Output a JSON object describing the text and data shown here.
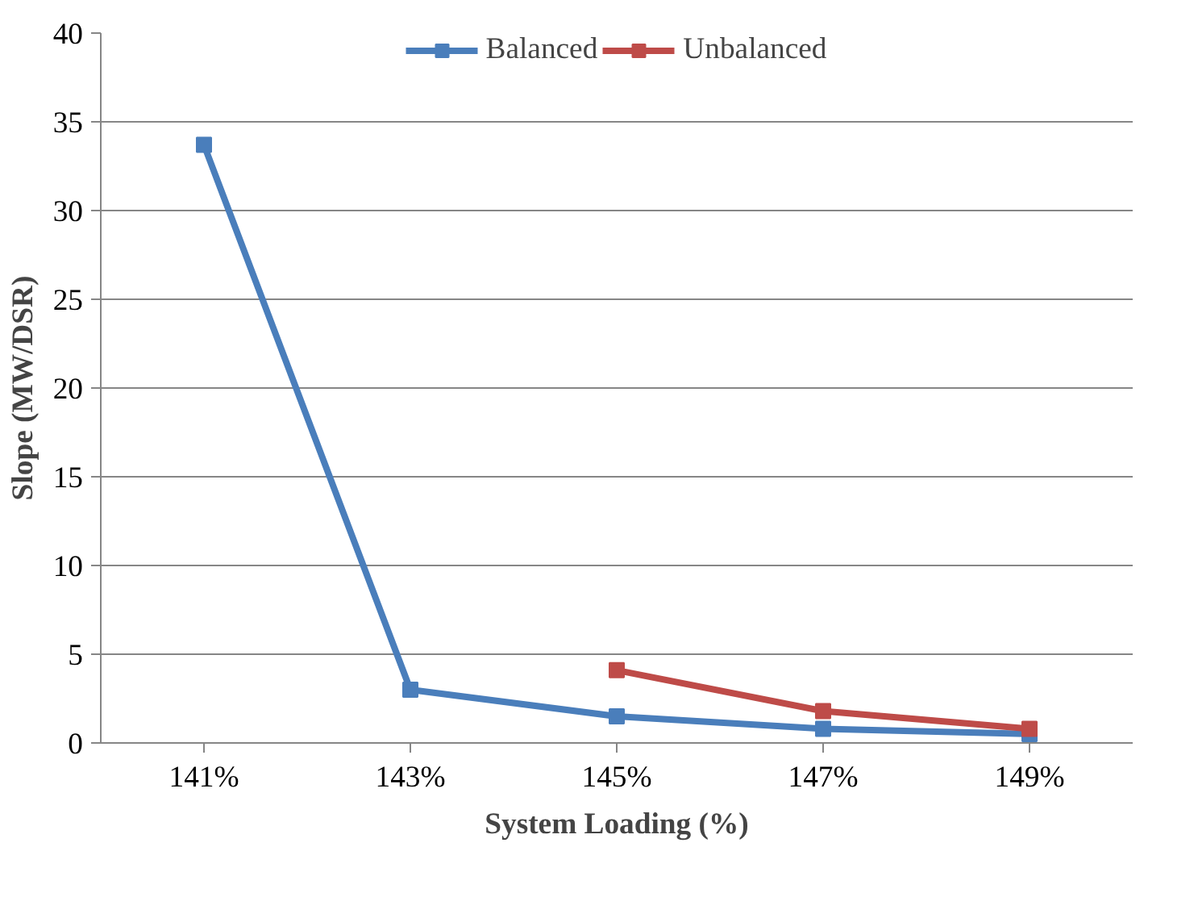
{
  "chart_data": {
    "type": "line",
    "xlabel": "System Loading (%)",
    "ylabel": "Slope (MW/DSR)",
    "categories": [
      "141%",
      "143%",
      "145%",
      "147%",
      "149%"
    ],
    "series": [
      {
        "name": "Balanced",
        "color": "#4a7ebb",
        "values": [
          33.7,
          3.0,
          1.5,
          0.8,
          0.5
        ]
      },
      {
        "name": "Unbalanced",
        "color": "#be4b48",
        "values": [
          null,
          null,
          4.1,
          1.8,
          0.8
        ]
      }
    ],
    "ylim": [
      0,
      40
    ],
    "yticks": [
      0,
      5,
      10,
      15,
      20,
      25,
      30,
      35,
      40
    ],
    "grid": "y",
    "legend": "top",
    "marker": "square",
    "line_style": "solid"
  }
}
